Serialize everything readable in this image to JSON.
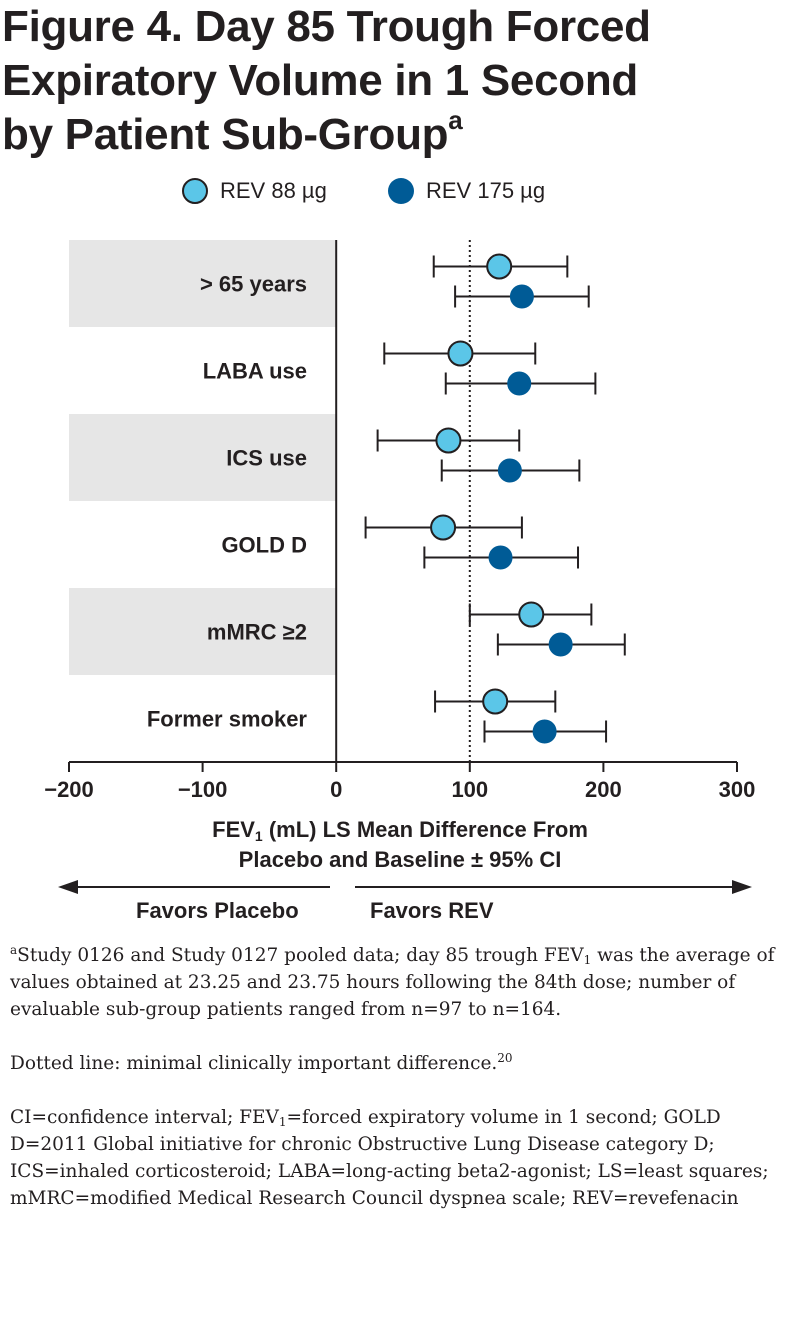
{
  "title": {
    "line1": "Figure 4. Day 85 Trough Forced",
    "line2": "Expiratory Volume in 1 Second",
    "line3": "by Patient Sub-Group",
    "footnote_marker": "a"
  },
  "legend": {
    "series1": "REV 88 µg",
    "series2": "REV 175 µg"
  },
  "colors": {
    "rev88": "#5bc6e8",
    "rev175": "#005b96",
    "band": "#e6e6e6",
    "ink": "#231f20"
  },
  "chart_data": {
    "type": "forest",
    "categories": [
      "> 65 years",
      "LABA use",
      "ICS use",
      "GOLD D",
      "mMRC ≥2",
      "Former smoker"
    ],
    "series": [
      {
        "name": "REV 88 µg",
        "values": [
          122,
          93,
          84,
          80,
          146,
          119
        ],
        "ci_low": [
          73,
          36,
          31,
          22,
          100,
          74
        ],
        "ci_high": [
          173,
          149,
          137,
          139,
          191,
          164
        ]
      },
      {
        "name": "REV 175 µg",
        "values": [
          139,
          137,
          130,
          123,
          168,
          156
        ],
        "ci_low": [
          89,
          82,
          79,
          66,
          121,
          111
        ],
        "ci_high": [
          189,
          194,
          182,
          181,
          216,
          202
        ]
      }
    ],
    "reference_line": 0,
    "mcid_line": 100,
    "xlim": [
      -200,
      300
    ],
    "xticks": [
      "−200",
      "−100",
      "0",
      "100",
      "200",
      "300"
    ],
    "xtick_values": [
      -200,
      -100,
      0,
      100,
      200,
      300
    ],
    "xlabel_line1_pre": "FEV",
    "xlabel_line1_sub": "1",
    "xlabel_line1_post": " (mL) LS Mean Difference From",
    "xlabel_line2": "Placebo and Baseline ± 95% CI",
    "favors_left": "Favors Placebo",
    "favors_right": "Favors REV"
  },
  "notes": {
    "n1_marker": "a",
    "n1_a": "Study 0126 and Study 0127 pooled data; day 85 trough FEV",
    "n1_sub": "1",
    "n1_b": " was the average of values obtained at 23.25 and 23.75 hours following the 84th dose; number of evaluable sub-group patients ranged from n=97 to n=164.",
    "n2_text": "Dotted line: minimal clinically important difference.",
    "n2_ref": "20",
    "n3_a": "CI=confidence interval; FEV",
    "n3_sub": "1",
    "n3_b": "=forced expiratory volume in 1 second; GOLD D=2011 Global initiative for chronic Obstructive Lung Disease category D; ICS=inhaled corticosteroid; LABA=long-acting beta2-agonist; LS=least squares; mMRC=modified Medical Research Council dyspnea scale; REV=revefenacin"
  }
}
